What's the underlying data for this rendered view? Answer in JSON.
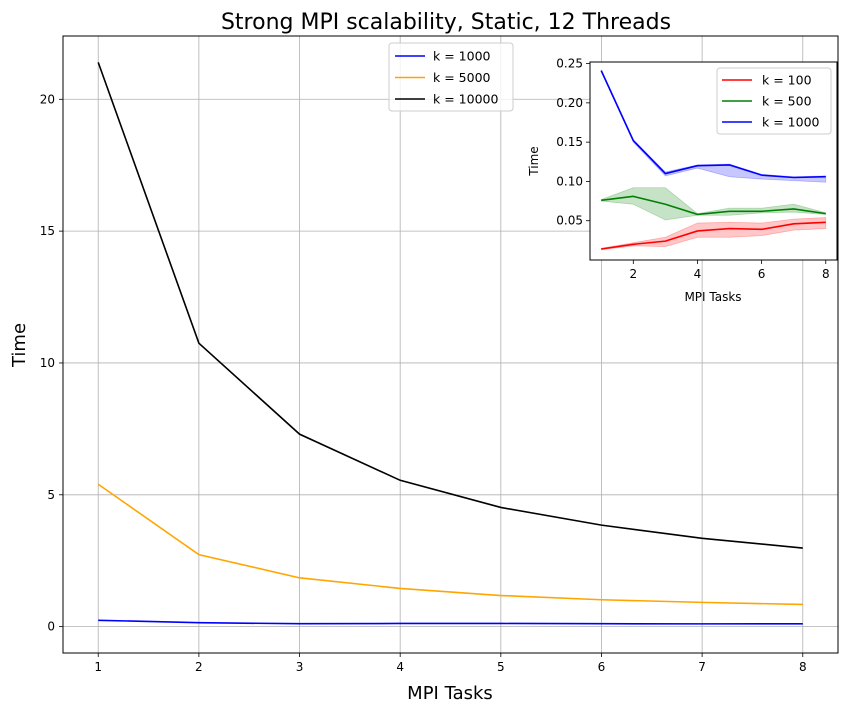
{
  "chart_data": [
    {
      "type": "line",
      "title": "Strong MPI scalability, Static, 12 Threads",
      "xlabel": "MPI Tasks",
      "ylabel": "Time",
      "x": [
        1,
        2,
        3,
        4,
        5,
        6,
        7,
        8
      ],
      "xlim": [
        0.65,
        8.35
      ],
      "ylim": [
        -1.0,
        22.4
      ],
      "xticks": [
        1,
        2,
        3,
        4,
        5,
        6,
        7,
        8
      ],
      "yticks": [
        0,
        5,
        10,
        15,
        20
      ],
      "grid": true,
      "legend_position": "top-center",
      "series": [
        {
          "name": "k = 1000",
          "color": "#0000ff",
          "values": [
            0.24,
            0.15,
            0.11,
            0.12,
            0.12,
            0.11,
            0.105,
            0.107
          ]
        },
        {
          "name": "k = 5000",
          "color": "#ffa500",
          "values": [
            5.4,
            2.73,
            1.85,
            1.45,
            1.18,
            1.02,
            0.92,
            0.84
          ]
        },
        {
          "name": "k = 10000",
          "color": "#000000",
          "values": [
            21.4,
            10.75,
            7.3,
            5.55,
            4.52,
            3.85,
            3.35,
            2.98
          ]
        }
      ]
    },
    {
      "type": "line",
      "title": "",
      "xlabel": "MPI Tasks",
      "ylabel": "Time",
      "x": [
        1,
        2,
        3,
        4,
        5,
        6,
        7,
        8
      ],
      "xlim": [
        0.65,
        8.35
      ],
      "ylim": [
        0.0,
        0.252
      ],
      "xticks": [
        2,
        4,
        6,
        8
      ],
      "yticks": [
        0.05,
        0.1,
        0.15,
        0.2,
        0.25
      ],
      "ytick_labels": [
        "0.05",
        "0.10",
        "0.15",
        "0.20",
        "0.25"
      ],
      "grid": false,
      "legend_position": "top-right",
      "series": [
        {
          "name": "k = 100",
          "color": "#ff0000",
          "values": [
            0.014,
            0.02,
            0.024,
            0.037,
            0.04,
            0.039,
            0.046,
            0.048
          ],
          "lower": [
            0.013,
            0.018,
            0.017,
            0.029,
            0.029,
            0.031,
            0.038,
            0.04
          ],
          "upper": [
            0.015,
            0.022,
            0.029,
            0.047,
            0.048,
            0.047,
            0.052,
            0.054
          ]
        },
        {
          "name": "k = 500",
          "color": "#008000",
          "values": [
            0.076,
            0.081,
            0.071,
            0.058,
            0.062,
            0.062,
            0.065,
            0.059
          ],
          "lower": [
            0.075,
            0.071,
            0.051,
            0.057,
            0.057,
            0.06,
            0.061,
            0.058
          ],
          "upper": [
            0.077,
            0.092,
            0.092,
            0.059,
            0.066,
            0.066,
            0.071,
            0.06
          ]
        },
        {
          "name": "k = 1000",
          "color": "#0000ff",
          "values": [
            0.241,
            0.152,
            0.11,
            0.12,
            0.121,
            0.108,
            0.105,
            0.106
          ],
          "lower": [
            0.24,
            0.15,
            0.107,
            0.117,
            0.106,
            0.103,
            0.101,
            0.099
          ],
          "upper": [
            0.242,
            0.153,
            0.112,
            0.121,
            0.122,
            0.109,
            0.106,
            0.107
          ]
        }
      ]
    }
  ]
}
